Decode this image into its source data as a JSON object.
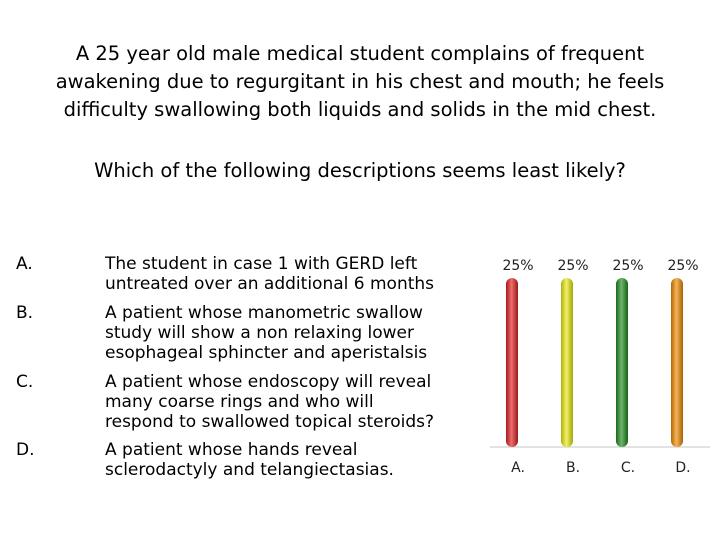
{
  "question": {
    "lines": [
      "A 25 year old male medical student complains of frequent",
      "awakening due to regurgitant in his chest and mouth; he feels",
      "difficulty swallowing both liquids and solids in the mid chest."
    ],
    "prompt": "Which of the following descriptions seems least likely?"
  },
  "options": [
    {
      "letter": "A.",
      "lines": [
        "The student in case 1 with GERD left",
        "untreated over an additional 6 months"
      ]
    },
    {
      "letter": "B.",
      "lines": [
        "A patient whose manometric swallow",
        "study will show a non relaxing lower",
        "esophageal sphincter and aperistalsis"
      ]
    },
    {
      "letter": "C.",
      "lines": [
        "A patient whose endoscopy will reveal",
        "many coarse rings and who will",
        "respond to swallowed topical steroids?"
      ]
    },
    {
      "letter": "D.",
      "lines": [
        "A patient whose hands reveal",
        "sclerodactyly and telangiectasias."
      ]
    }
  ],
  "chart_data": {
    "type": "bar",
    "categories": [
      "A.",
      "B.",
      "C.",
      "D."
    ],
    "values": [
      25,
      25,
      25,
      25
    ],
    "data_labels": [
      "25%",
      "25%",
      "25%",
      "25%"
    ],
    "ylim": [
      0,
      25
    ],
    "colors": [
      "#e02020",
      "#eaea10",
      "#1e8c1e",
      "#f08a00"
    ],
    "grid": false,
    "legend": false
  }
}
